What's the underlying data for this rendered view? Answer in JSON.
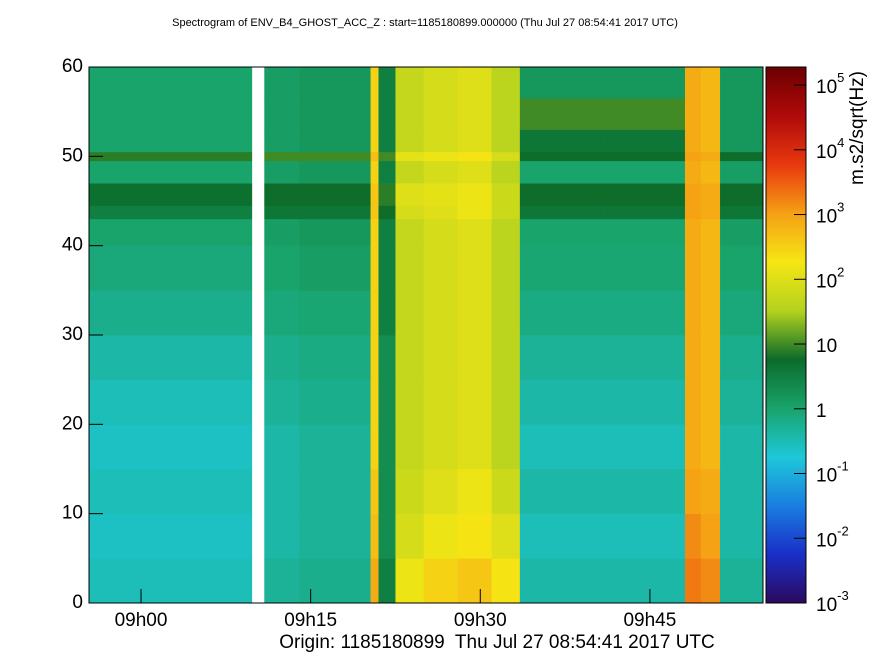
{
  "chart_data": {
    "type": "heatmap",
    "title": "Spectrogram of ENV_B4_GHOST_ACC_Z : start=1185180899.000000 (Thu Jul 27 08:54:41 2017 UTC)",
    "xlabel": "Origin: 1185180899  Thu Jul 27 08:54:41 2017 UTC",
    "zlabel": "m.s2/sqrt(Hz)",
    "xlim": [
      -4.6,
      55
    ],
    "xticks": [
      {
        "value": 0,
        "label": "09h00"
      },
      {
        "value": 15,
        "label": "09h15"
      },
      {
        "value": 30,
        "label": "09h30"
      },
      {
        "value": 45,
        "label": "09h45"
      }
    ],
    "ylim": [
      0,
      60
    ],
    "yticks": [
      0,
      10,
      20,
      30,
      40,
      50,
      60
    ],
    "log_z": true,
    "zlim": [
      0.001,
      190000
    ],
    "zticks": [
      {
        "value": 0.001,
        "label": "10",
        "exp": "-3"
      },
      {
        "value": 0.01,
        "label": "10",
        "exp": "-2"
      },
      {
        "value": 0.1,
        "label": "10",
        "exp": "-1"
      },
      1,
      10,
      {
        "value": 100,
        "label": "10",
        "exp": "2"
      },
      {
        "value": 1000,
        "label": "10",
        "exp": "3"
      },
      {
        "value": 10000,
        "label": "10",
        "exp": "4"
      },
      {
        "value": 100000,
        "label": "10",
        "exp": "5"
      }
    ],
    "colormap": [
      "#2a0a5e",
      "#1a2fc8",
      "#1a7ee0",
      "#1ec8d8",
      "#19a36a",
      "#0b6b2a",
      "#b4d21e",
      "#f5e614",
      "#f5a014",
      "#e8380f",
      "#b00a0a",
      "#6b0000"
    ],
    "x_edges": [
      -4.6,
      9.8,
      10.9,
      14,
      20.3,
      21,
      22.5,
      25,
      28,
      31,
      33.5,
      41,
      48.1,
      49.5,
      51.2,
      55
    ],
    "y_edges": [
      0,
      5,
      10,
      15,
      20,
      25,
      30,
      35,
      40,
      43,
      44.5,
      47,
      49.5,
      50.5,
      53,
      56.5,
      60
    ],
    "z": [
      [
        0.3,
        null,
        0.5,
        0.6,
        800,
        3,
        150,
        300,
        400,
        200,
        0.4,
        0.4,
        2000,
        1500,
        0.5
      ],
      [
        0.25,
        null,
        0.4,
        0.5,
        500,
        2,
        80,
        150,
        200,
        100,
        0.3,
        0.3,
        1500,
        1000,
        0.4
      ],
      [
        0.3,
        null,
        0.4,
        0.5,
        400,
        2,
        60,
        100,
        150,
        60,
        0.4,
        0.4,
        1000,
        800,
        0.4
      ],
      [
        0.25,
        null,
        0.4,
        0.5,
        300,
        2,
        50,
        80,
        100,
        40,
        0.3,
        0.3,
        800,
        600,
        0.4
      ],
      [
        0.3,
        null,
        0.5,
        0.6,
        300,
        2,
        50,
        80,
        100,
        40,
        0.4,
        0.4,
        800,
        600,
        0.5
      ],
      [
        0.4,
        null,
        0.6,
        0.7,
        300,
        2,
        50,
        80,
        100,
        40,
        0.5,
        0.5,
        800,
        600,
        0.6
      ],
      [
        0.6,
        null,
        0.8,
        0.9,
        300,
        3,
        50,
        80,
        100,
        40,
        0.7,
        0.7,
        800,
        600,
        0.8
      ],
      [
        0.8,
        null,
        1,
        1.2,
        300,
        3,
        50,
        80,
        100,
        40,
        0.9,
        0.9,
        800,
        600,
        1
      ],
      [
        1,
        null,
        1.2,
        1.5,
        300,
        3,
        50,
        80,
        100,
        40,
        1,
        1,
        800,
        600,
        1.2
      ],
      [
        3,
        null,
        4,
        4,
        400,
        6,
        80,
        100,
        150,
        60,
        4,
        4,
        1000,
        800,
        4
      ],
      [
        5,
        null,
        6,
        6,
        400,
        8,
        100,
        120,
        150,
        60,
        6,
        6,
        1000,
        800,
        6
      ],
      [
        1,
        null,
        1.2,
        1.5,
        300,
        3,
        50,
        80,
        100,
        40,
        1,
        1,
        800,
        600,
        1.2
      ],
      [
        8,
        null,
        10,
        10,
        500,
        10,
        120,
        150,
        200,
        80,
        6,
        6,
        1000,
        800,
        6
      ],
      [
        1,
        null,
        1.2,
        1.5,
        300,
        3,
        50,
        80,
        100,
        40,
        4,
        4,
        800,
        600,
        1.5
      ],
      [
        1,
        null,
        1.2,
        1.5,
        300,
        3,
        50,
        80,
        100,
        40,
        10,
        10,
        800,
        600,
        1.5
      ],
      [
        1,
        null,
        1.2,
        1.5,
        300,
        3,
        50,
        80,
        100,
        40,
        1.5,
        1.5,
        800,
        600,
        1.5
      ]
    ]
  }
}
